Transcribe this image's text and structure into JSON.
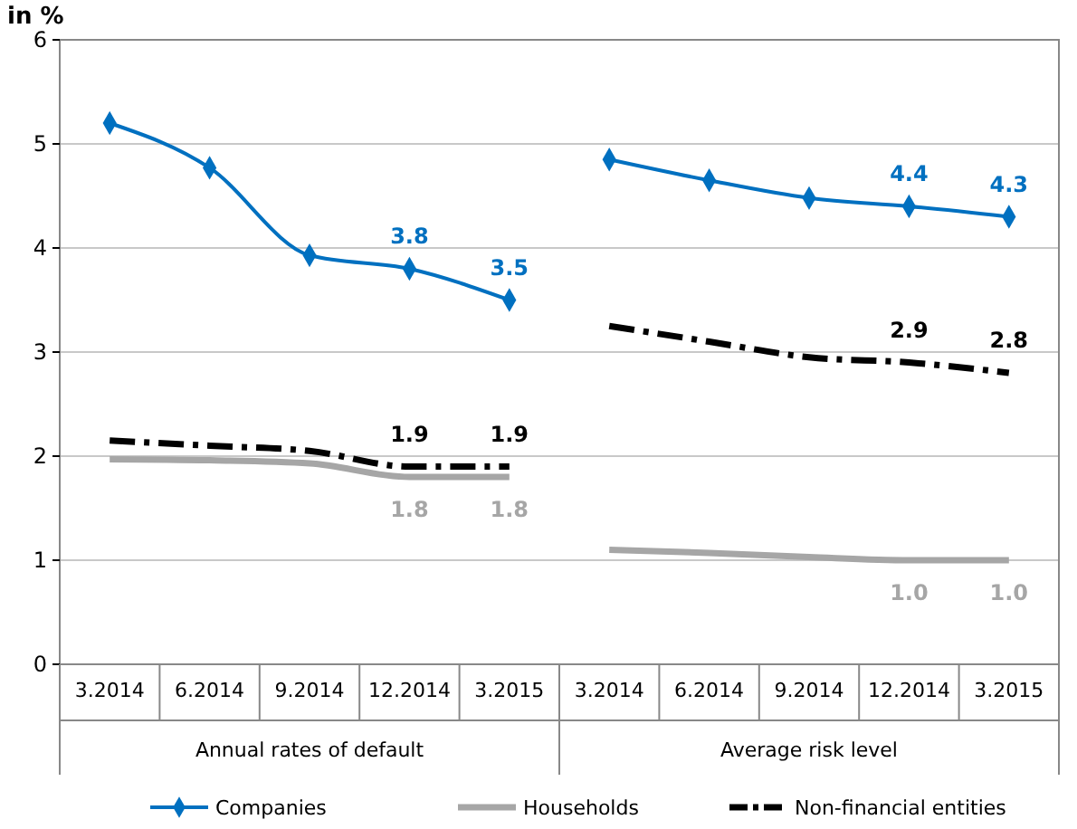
{
  "chart_data": {
    "type": "line",
    "ylabel": "in %",
    "categories": [
      "3.2014",
      "6.2014",
      "9.2014",
      "12.2014",
      "3.2015",
      "3.2014",
      "6.2014",
      "9.2014",
      "12.2014",
      "3.2015"
    ],
    "annotations": [
      "Annual rates of default",
      "Average risk level"
    ],
    "ylim": [
      0,
      6
    ],
    "yticks": [
      0,
      1,
      2,
      3,
      4,
      5,
      6
    ],
    "grid": "y",
    "legend": "bottom",
    "series": [
      {
        "name": "Companies",
        "color": "#0070c0",
        "marker": "diamond",
        "line_style": "solid",
        "values": [
          5.2,
          4.77,
          3.93,
          3.8,
          3.5,
          4.85,
          4.65,
          4.48,
          4.4,
          4.3
        ],
        "value_labels": [
          null,
          null,
          null,
          "3.8",
          "3.5",
          null,
          null,
          null,
          "4.4",
          "4.3"
        ]
      },
      {
        "name": "Households",
        "color": "#a6a6a6",
        "marker": "none",
        "line_style": "solid",
        "values": [
          1.97,
          1.96,
          1.93,
          1.8,
          1.8,
          1.1,
          1.07,
          1.03,
          1.0,
          1.0
        ],
        "value_labels": [
          null,
          null,
          null,
          "1.8",
          "1.8",
          null,
          null,
          null,
          "1.0",
          "1.0"
        ]
      },
      {
        "name": "Non-financial entities",
        "color": "#000000",
        "marker": "none",
        "line_style": "dashed",
        "values": [
          2.15,
          2.1,
          2.05,
          1.9,
          1.9,
          3.25,
          3.1,
          2.95,
          2.9,
          2.8
        ],
        "value_labels": [
          null,
          null,
          null,
          "1.9",
          "1.9",
          null,
          null,
          null,
          "2.9",
          "2.8"
        ]
      }
    ]
  }
}
